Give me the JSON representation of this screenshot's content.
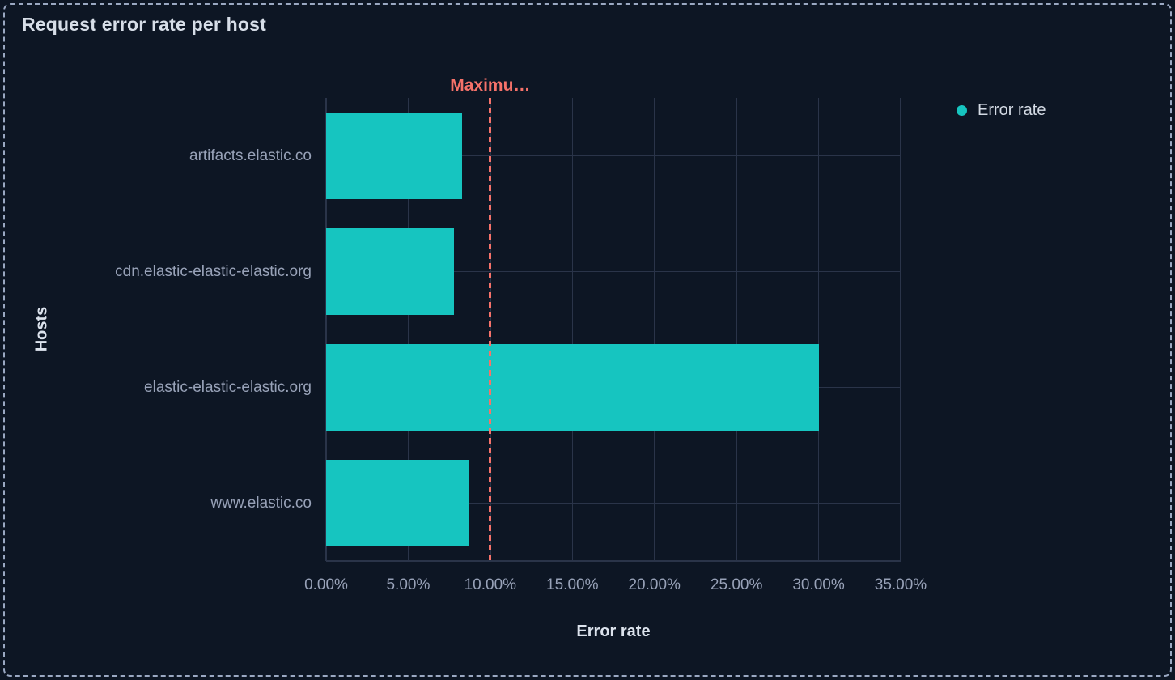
{
  "panel": {
    "title": "Request error rate per host"
  },
  "colors": {
    "background": "#0d1624",
    "panel_border": "#9aa8c2",
    "grid": "#2a3449",
    "bar": "#16c5c0",
    "threshold": "#f6726a",
    "title_text": "#d7dee8",
    "axis_title_text": "#dce3ed",
    "muted_text": "#98a2b8",
    "legend_text": "#d4dbe5"
  },
  "chart_data": {
    "type": "bar",
    "orientation": "horizontal",
    "title": "Request error rate per host",
    "categories": [
      "artifacts.elastic.co",
      "cdn.elastic-elastic-elastic.org",
      "elastic-elastic-elastic.org",
      "www.elastic.co"
    ],
    "series": [
      {
        "name": "Error rate",
        "color": "#16c5c0",
        "unit": "%",
        "values": [
          8.3,
          7.8,
          30.0,
          8.7
        ]
      }
    ],
    "xlabel": "Error rate",
    "ylabel": "Hosts",
    "xlim": [
      0,
      35
    ],
    "x_ticks": [
      {
        "value": 0,
        "label": "0.00%"
      },
      {
        "value": 5,
        "label": "5.00%"
      },
      {
        "value": 10,
        "label": "10.00%"
      },
      {
        "value": 15,
        "label": "15.00%"
      },
      {
        "value": 20,
        "label": "20.00%"
      },
      {
        "value": 25,
        "label": "25.00%"
      },
      {
        "value": 30,
        "label": "30.00%"
      },
      {
        "value": 35,
        "label": "35.00%"
      }
    ],
    "grid": true,
    "threshold": {
      "value": 10,
      "label": "Maximu…",
      "color": "#f6726a",
      "style": "dashed"
    },
    "legend": {
      "position": "top-right",
      "items": [
        {
          "label": "Error rate",
          "color": "#16c5c0"
        }
      ]
    }
  }
}
